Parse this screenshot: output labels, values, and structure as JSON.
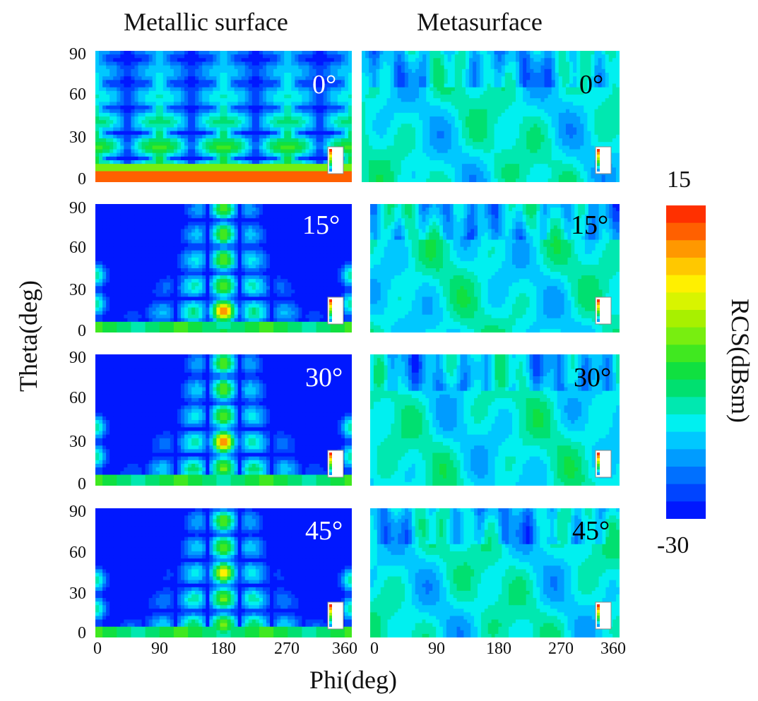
{
  "colors": {
    "colormap": [
      "#0018ff",
      "#0044ff",
      "#0070ff",
      "#009cff",
      "#00c8ff",
      "#00f0f0",
      "#00e8b0",
      "#00e070",
      "#10e040",
      "#40e820",
      "#78ee10",
      "#a8f000",
      "#d8f400",
      "#fff000",
      "#ffc800",
      "#ff9800",
      "#ff6000",
      "#ff3000"
    ]
  },
  "columns": [
    "Metallic surface",
    "Metasurface"
  ],
  "y_axis": {
    "label": "Theta(deg)",
    "ticks": [
      "90",
      "60",
      "30",
      "0"
    ]
  },
  "x_axis": {
    "label": "Phi(deg)",
    "ticks": [
      "0",
      "90",
      "180",
      "270",
      "360"
    ]
  },
  "colorbar": {
    "label": "RCS(dBsm)",
    "max_label": "15",
    "min_label": "-30"
  },
  "chart_data": {
    "type": "heatmap",
    "title": "",
    "columns": [
      "Metallic surface",
      "Metasurface"
    ],
    "xlabel": "Phi(deg)",
    "ylabel": "Theta(deg)",
    "xlim": [
      0,
      360
    ],
    "ylim": [
      0,
      90
    ],
    "xticks": [
      0,
      90,
      180,
      270,
      360
    ],
    "yticks": [
      0,
      30,
      60,
      90
    ],
    "colorbar": {
      "label": "RCS(dBsm)",
      "min": -30,
      "max": 15
    },
    "rows": [
      {
        "incidence_label": "0°",
        "incidence_deg": 0,
        "metallic_peak": {
          "phi": "all",
          "theta": 3,
          "rcs_dbsm": 12
        }
      },
      {
        "incidence_label": "15°",
        "incidence_deg": 15,
        "metallic_peak": {
          "phi": 180,
          "theta": 15,
          "rcs_dbsm": 12
        }
      },
      {
        "incidence_label": "30°",
        "incidence_deg": 30,
        "metallic_peak": {
          "phi": 180,
          "theta": 30,
          "rcs_dbsm": 10
        }
      },
      {
        "incidence_label": "45°",
        "incidence_deg": 45,
        "metallic_peak": {
          "phi": 180,
          "theta": 45,
          "rcs_dbsm": 5
        }
      }
    ],
    "metasurface_range_dbsm": [
      -25,
      -8
    ]
  }
}
